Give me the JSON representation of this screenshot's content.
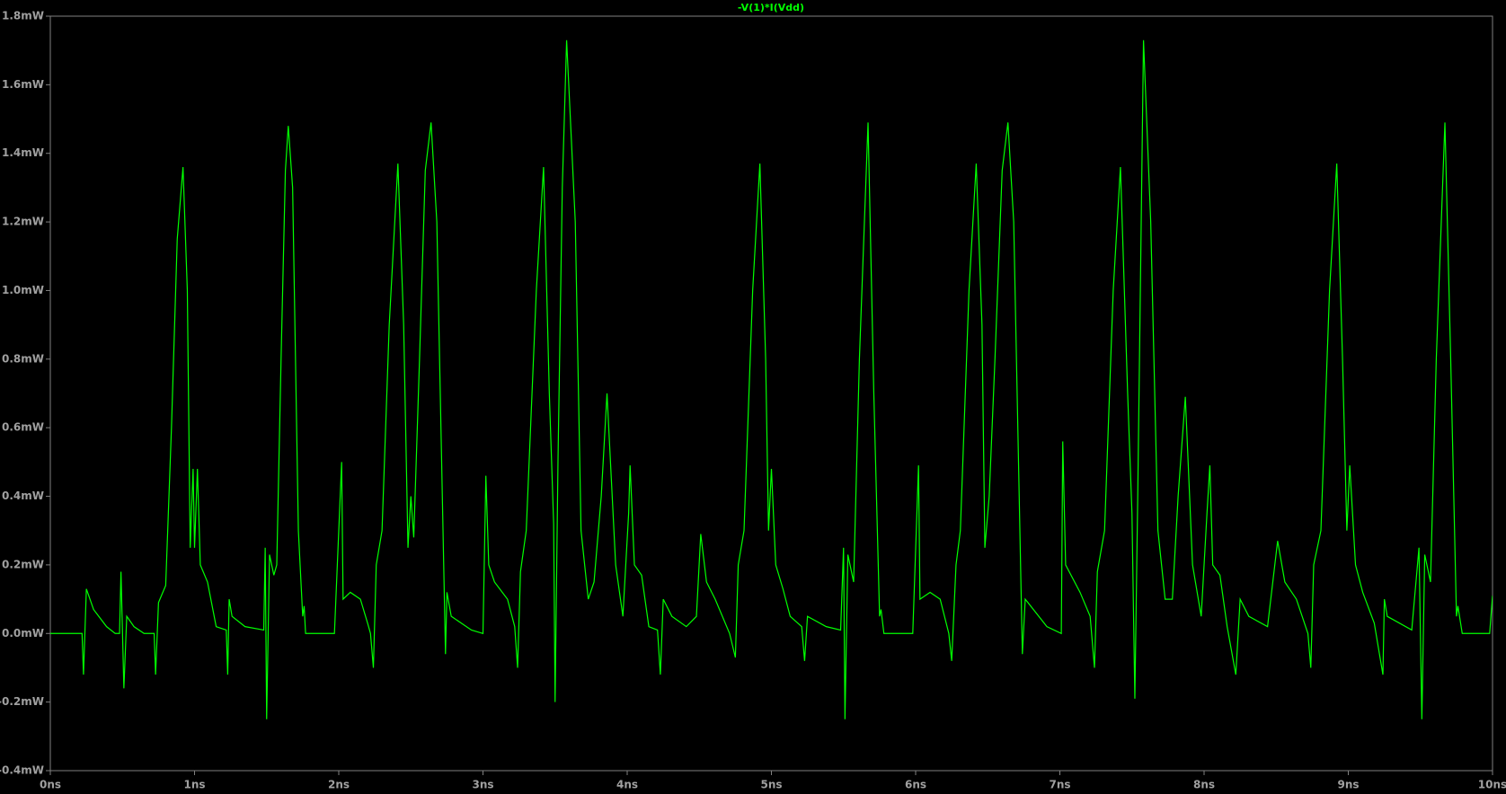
{
  "chart_data": {
    "type": "line",
    "xlim": [
      0,
      10
    ],
    "ylim": [
      -0.4,
      1.8
    ],
    "xticks": [
      {
        "value": 0,
        "label": "0ns"
      },
      {
        "value": 1,
        "label": "1ns"
      },
      {
        "value": 2,
        "label": "2ns"
      },
      {
        "value": 3,
        "label": "3ns"
      },
      {
        "value": 4,
        "label": "4ns"
      },
      {
        "value": 5,
        "label": "5ns"
      },
      {
        "value": 6,
        "label": "6ns"
      },
      {
        "value": 7,
        "label": "7ns"
      },
      {
        "value": 8,
        "label": "8ns"
      },
      {
        "value": 9,
        "label": "9ns"
      },
      {
        "value": 10,
        "label": "10ns"
      }
    ],
    "yticks": [
      {
        "value": -0.4,
        "label": "-0.4mW"
      },
      {
        "value": -0.2,
        "label": "-0.2mW"
      },
      {
        "value": 0,
        "label": "0.0mW"
      },
      {
        "value": 0.2,
        "label": "0.2mW"
      },
      {
        "value": 0.4,
        "label": "0.4mW"
      },
      {
        "value": 0.6,
        "label": "0.6mW"
      },
      {
        "value": 0.8,
        "label": "0.8mW"
      },
      {
        "value": 1.0,
        "label": "1.0mW"
      },
      {
        "value": 1.2,
        "label": "1.2mW"
      },
      {
        "value": 1.4,
        "label": "1.4mW"
      },
      {
        "value": 1.6,
        "label": "1.6mW"
      },
      {
        "value": 1.8,
        "label": "1.8mW"
      }
    ],
    "x": [
      0,
      0.22,
      0.23,
      0.25,
      0.3,
      0.39,
      0.45,
      0.48,
      0.49,
      0.51,
      0.53,
      0.58,
      0.65,
      0.72,
      0.73,
      0.75,
      0.8,
      0.84,
      0.88,
      0.92,
      0.95,
      0.97,
      0.99,
      1.0,
      1.02,
      1.04,
      1.09,
      1.15,
      1.22,
      1.23,
      1.24,
      1.26,
      1.35,
      1.48,
      1.49,
      1.5,
      1.52,
      1.55,
      1.57,
      1.6,
      1.63,
      1.65,
      1.68,
      1.72,
      1.75,
      1.76,
      1.77,
      1.97,
      1.98,
      2.02,
      2.03,
      2.08,
      2.15,
      2.2,
      2.22,
      2.24,
      2.26,
      2.3,
      2.35,
      2.41,
      2.45,
      2.48,
      2.5,
      2.52,
      2.56,
      2.6,
      2.64,
      2.68,
      2.73,
      2.74,
      2.75,
      2.78,
      2.92,
      3.0,
      3.02,
      3.04,
      3.08,
      3.17,
      3.22,
      3.24,
      3.26,
      3.3,
      3.37,
      3.42,
      3.46,
      3.49,
      3.5,
      3.52,
      3.55,
      3.58,
      3.64,
      3.68,
      3.73,
      3.77,
      3.82,
      3.86,
      3.92,
      3.97,
      4.01,
      4.02,
      4.05,
      4.1,
      4.15,
      4.21,
      4.23,
      4.25,
      4.31,
      4.41,
      4.48,
      4.51,
      4.55,
      4.61,
      4.71,
      4.75,
      4.77,
      4.81,
      4.87,
      4.92,
      4.96,
      4.98,
      5.0,
      5.03,
      5.08,
      5.13,
      5.21,
      5.23,
      5.25,
      5.38,
      5.48,
      5.5,
      5.51,
      5.53,
      5.57,
      5.61,
      5.67,
      5.71,
      5.75,
      5.76,
      5.78,
      5.98,
      6.02,
      6.03,
      6.1,
      6.17,
      6.23,
      6.25,
      6.28,
      6.31,
      6.37,
      6.42,
      6.46,
      6.48,
      6.51,
      6.55,
      6.6,
      6.64,
      6.68,
      6.73,
      6.74,
      6.76,
      6.91,
      7.01,
      7.02,
      7.04,
      7.14,
      7.21,
      7.24,
      7.26,
      7.31,
      7.37,
      7.42,
      7.47,
      7.5,
      7.52,
      7.54,
      7.58,
      7.63,
      7.68,
      7.73,
      7.78,
      7.82,
      7.87,
      7.92,
      7.98,
      8.02,
      8.04,
      8.06,
      8.11,
      8.16,
      8.22,
      8.25,
      8.31,
      8.44,
      8.51,
      8.56,
      8.64,
      8.72,
      8.74,
      8.76,
      8.81,
      8.87,
      8.92,
      8.96,
      8.99,
      9.01,
      9.05,
      9.1,
      9.18,
      9.24,
      9.25,
      9.27,
      9.44,
      9.49,
      9.51,
      9.53,
      9.57,
      9.61,
      9.67,
      9.71,
      9.75,
      9.76,
      9.79,
      9.98,
      10
    ],
    "series": [
      {
        "name": "-V(1)*I(Vdd)",
        "color": "#00ff00",
        "values": [
          0,
          0,
          -0.12,
          0.13,
          0.07,
          0.02,
          0,
          0,
          0.18,
          -0.16,
          0.05,
          0.02,
          0,
          0,
          -0.12,
          0.09,
          0.14,
          0.6,
          1.15,
          1.36,
          1.0,
          0.25,
          0.48,
          0.25,
          0.48,
          0.2,
          0.15,
          0.02,
          0.01,
          -0.12,
          0.1,
          0.05,
          0.02,
          0.01,
          0.25,
          -0.25,
          0.23,
          0.17,
          0.2,
          0.8,
          1.35,
          1.48,
          1.3,
          0.3,
          0.05,
          0.08,
          0,
          0,
          0.1,
          0.5,
          0.1,
          0.12,
          0.1,
          0.03,
          0,
          -0.1,
          0.2,
          0.3,
          0.9,
          1.37,
          0.9,
          0.25,
          0.4,
          0.28,
          0.8,
          1.35,
          1.49,
          1.2,
          0.15,
          -0.06,
          0.12,
          0.05,
          0.01,
          0,
          0.46,
          0.2,
          0.15,
          0.1,
          0.02,
          -0.1,
          0.18,
          0.3,
          1.0,
          1.36,
          0.7,
          0.32,
          -0.2,
          0.5,
          1.3,
          1.73,
          1.2,
          0.3,
          0.1,
          0.15,
          0.4,
          0.7,
          0.2,
          0.05,
          0.35,
          0.49,
          0.2,
          0.17,
          0.02,
          0.01,
          -0.12,
          0.1,
          0.05,
          0.02,
          0.05,
          0.29,
          0.15,
          0.1,
          0,
          -0.07,
          0.2,
          0.3,
          1.0,
          1.37,
          0.8,
          0.3,
          0.48,
          0.2,
          0.13,
          0.05,
          0.02,
          -0.08,
          0.05,
          0.02,
          0.01,
          0.25,
          -0.25,
          0.23,
          0.15,
          0.8,
          1.49,
          0.7,
          0.05,
          0.07,
          0,
          0,
          0.49,
          0.1,
          0.12,
          0.1,
          0,
          -0.08,
          0.2,
          0.3,
          1.0,
          1.37,
          0.9,
          0.25,
          0.4,
          0.8,
          1.35,
          1.49,
          1.2,
          0.15,
          -0.06,
          0.1,
          0.02,
          0,
          0.56,
          0.2,
          0.12,
          0.05,
          -0.1,
          0.18,
          0.3,
          1.0,
          1.36,
          0.7,
          0.35,
          -0.19,
          0.4,
          1.73,
          1.2,
          0.3,
          0.1,
          0.1,
          0.4,
          0.69,
          0.2,
          0.05,
          0.35,
          0.49,
          0.2,
          0.17,
          0.02,
          -0.12,
          0.1,
          0.05,
          0.02,
          0.27,
          0.15,
          0.1,
          0,
          -0.1,
          0.2,
          0.3,
          1.0,
          1.37,
          0.8,
          0.3,
          0.49,
          0.2,
          0.12,
          0.03,
          -0.12,
          0.1,
          0.05,
          0.01,
          0.25,
          -0.25,
          0.23,
          0.15,
          0.8,
          1.49,
          0.8,
          0.05,
          0.08,
          0,
          0,
          0.11
        ]
      }
    ]
  }
}
